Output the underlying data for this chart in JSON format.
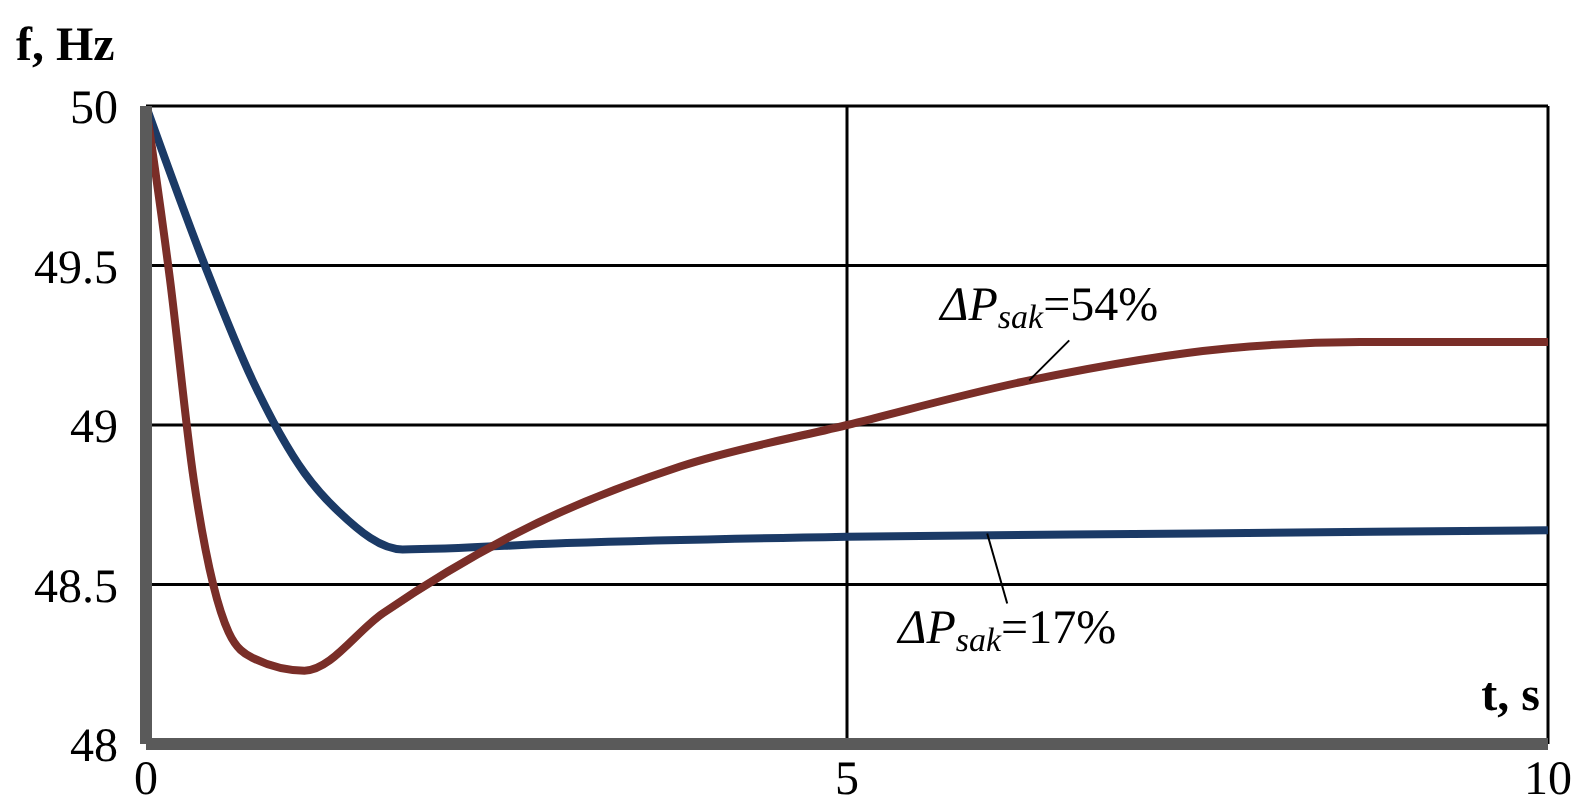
{
  "chart_data": {
    "type": "line",
    "xlabel": "t, s",
    "ylabel": "f, Hz",
    "xlim": [
      0,
      10
    ],
    "xticks": [
      0,
      5,
      10
    ],
    "ylim": [
      48,
      50
    ],
    "yticks": [
      48,
      48.5,
      49,
      49.5,
      50
    ],
    "grid": true,
    "marker": "none",
    "line_style": "solid",
    "series": [
      {
        "color": "#1b3a66",
        "x": [
          0,
          0.42,
          0.76,
          1.13,
          1.37,
          1.83,
          3,
          5,
          7.5,
          10
        ],
        "values": [
          50,
          49.5,
          49.14,
          48.85,
          48.73,
          48.61,
          48.63,
          48.65,
          48.66,
          48.67
        ]
      },
      {
        "color": "#7a2e28",
        "x": [
          0,
          0.17,
          0.34,
          0.59,
          0.76,
          1.13,
          1.69,
          2.64,
          3.81,
          5,
          6.3,
          7.71,
          8.66,
          10
        ],
        "values": [
          50,
          49.46,
          48.83,
          48.35,
          48.27,
          48.23,
          48.41,
          48.66,
          48.87,
          49,
          49.14,
          49.24,
          49.26,
          49.26
        ]
      }
    ],
    "annotations": [
      {
        "text": "ΔP$_{sak}$=54%",
        "x": 6.3,
        "y": 49.14
      },
      {
        "text": "ΔP$_{sak}$=17%",
        "x": 6,
        "y": 48.66
      }
    ]
  }
}
